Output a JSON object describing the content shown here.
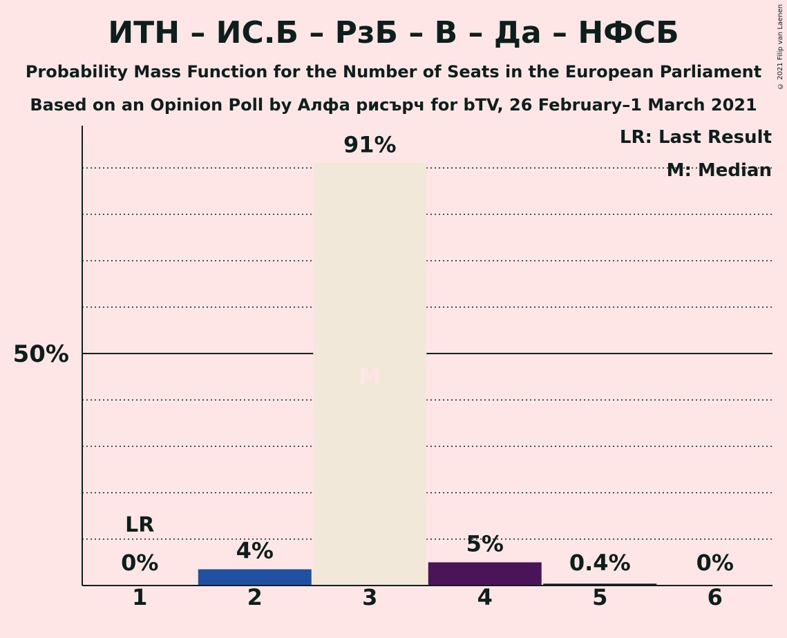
{
  "title": "ИТН – ИС.Б – РзБ – В – Да – НФСБ",
  "subtitle_line1": "Probability Mass Function for the Number of Seats in the European Parliament",
  "subtitle_line2": "Based on an Opinion Poll by Алфа рисърч for bTV, 26 February–1 March 2021",
  "copyright": "© 2021 Filip van Laenen",
  "legend": {
    "last_result": "LR: Last Result",
    "median": "M: Median"
  },
  "colors": {
    "background": "#fde6e5",
    "text": "#0d1f1c",
    "median_bar": "#f2e8d9",
    "median_marker": "#fde6e5"
  },
  "chart_data": {
    "type": "bar",
    "categories": [
      "1",
      "2",
      "3",
      "4",
      "5",
      "6"
    ],
    "values": [
      0,
      3.5,
      91,
      5,
      0.4,
      0
    ],
    "value_labels": [
      "0%",
      "4%",
      "91%",
      "5%",
      "0.4%",
      "0%"
    ],
    "bar_colors": [
      "#2050a0",
      "#2050a0",
      "#f2e8d9",
      "#4b1458",
      "#0d1f1c",
      "#0d1f1c"
    ],
    "last_result_category": "1",
    "last_result_label": "LR",
    "median_category": "3",
    "median_label": "M",
    "ylim": [
      0,
      100
    ],
    "gridlines": [
      10,
      20,
      30,
      40,
      60,
      70,
      80,
      90
    ],
    "major_gridline": 50,
    "ytick_labels": [
      {
        "value": 50,
        "label": "50%"
      }
    ],
    "xlabel": "",
    "ylabel": "",
    "grid": true
  }
}
